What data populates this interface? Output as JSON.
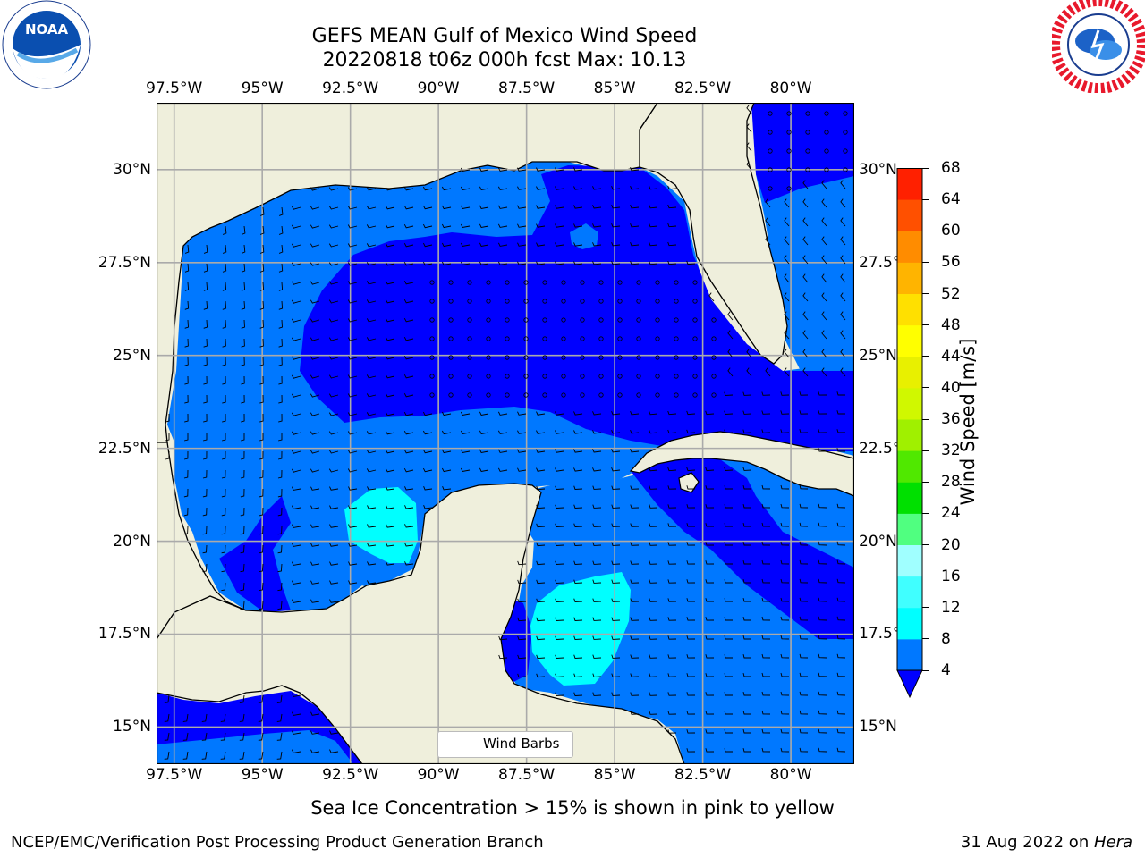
{
  "header": {
    "title_line1": "GEFS MEAN Gulf of Mexico Wind Speed",
    "title_line2": "20220818 t06z 000h fcst   Max: 10.13"
  },
  "logos": {
    "left": {
      "name": "noaa-logo",
      "text": "NOAA",
      "ring_text": "NATIONAL OCEANIC AND ATMOSPHERIC ADMINISTRATION · U.S. DEPARTMENT OF COMMERCE"
    },
    "right": {
      "name": "nws-logo",
      "ring_text": "NATIONAL WEATHER SERVICE"
    }
  },
  "map": {
    "extent": {
      "lon_min": -98.0,
      "lon_max": -78.2,
      "lat_min": 14.0,
      "lat_max": 31.8
    },
    "lon_ticks": [
      "97.5°W",
      "95°W",
      "92.5°W",
      "90°W",
      "87.5°W",
      "85°W",
      "82.5°W",
      "80°W"
    ],
    "lon_values": [
      -97.5,
      -95,
      -92.5,
      -90,
      -87.5,
      -85,
      -82.5,
      -80
    ],
    "lat_ticks": [
      "30°N",
      "27.5°N",
      "25°N",
      "22.5°N",
      "20°N",
      "17.5°N",
      "15°N"
    ],
    "lat_right_ticks": [
      "30°N",
      "27.5°",
      "25°N",
      "22.5°",
      "20°N",
      "17.5°",
      "15°N"
    ],
    "lat_values": [
      30,
      27.5,
      25,
      22.5,
      20,
      17.5,
      15
    ],
    "land_color": "#efefdc",
    "ocean_base_color": "#0078ff",
    "calm_color": "#0000ff",
    "high_color": "#00ffff",
    "grid_color": "#aaaaaa",
    "legend_label": "Wind Barbs"
  },
  "colorbar": {
    "label": "Wind Speed [m/s]",
    "levels": [
      "4",
      "8",
      "12",
      "16",
      "20",
      "24",
      "28",
      "32",
      "36",
      "40",
      "44",
      "48",
      "52",
      "56",
      "60",
      "64",
      "68"
    ],
    "colors": [
      "#0078ff",
      "#00ffff",
      "#40ffff",
      "#a0ffff",
      "#50ff80",
      "#00e000",
      "#50e800",
      "#a0f000",
      "#d0f800",
      "#e8f000",
      "#ffff00",
      "#ffe000",
      "#ffb400",
      "#ff8c00",
      "#ff5000",
      "#ff2000"
    ],
    "under_color": "#0000ff"
  },
  "footer": {
    "caption": "Sea Ice Concentration > 15% is shown in pink to yellow",
    "left": "NCEP/EMC/Verification Post Processing Product Generation Branch",
    "right_prefix": "31 Aug 2022 on ",
    "right_italic": "Hera"
  }
}
